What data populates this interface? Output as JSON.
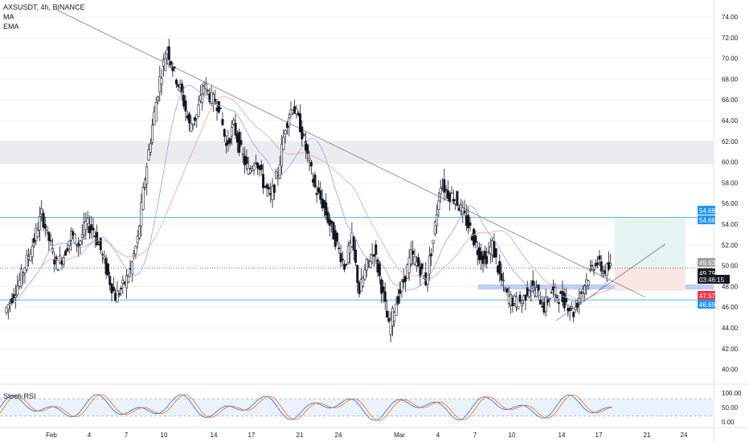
{
  "legend": {
    "symbol_line": "AXSUSDT, 4h, BINANCE",
    "indicator_1": "MA",
    "indicator_2": "EMA"
  },
  "oscillator": {
    "label": "Stoch RSI",
    "ticks": [
      "100.00",
      "50.00",
      "0.00"
    ]
  },
  "price_badges": [
    {
      "text": "54.68",
      "color": "#2196f3"
    },
    {
      "text": "54.66",
      "color": "#2196f3"
    },
    {
      "text": "49.83",
      "color": "#9e9e9e"
    },
    {
      "text": "49.79",
      "color": "#131722"
    },
    {
      "text": "03:46:15",
      "color": "#131722"
    },
    {
      "text": "47.57",
      "color": "#f23645"
    },
    {
      "text": "46.69",
      "color": "#2196f3"
    }
  ],
  "colors": {
    "candle": "#131722",
    "trendline": "#787b86",
    "horizontal_line": "#56b6e6",
    "ma_line": "#8fa3e8",
    "ema_line": "#f2a0a0",
    "stoch_k": "#2962ff",
    "stoch_d": "#ff6d00",
    "gray_zone": "#ebecef",
    "blue_zone": "#bfcdf5",
    "target_zone": "#e6f4f1",
    "stop_zone": "#fbe6e6"
  },
  "chart_data": {
    "type": "candlestick",
    "symbol": "AXSUSDT",
    "interval": "4h",
    "exchange": "BINANCE",
    "ylim": [
      39,
      75
    ],
    "y_ticks": [
      "74.00",
      "72.00",
      "70.00",
      "68.00",
      "66.00",
      "64.00",
      "62.00",
      "60.00",
      "58.00",
      "56.00",
      "54.00",
      "52.00",
      "50.00",
      "48.00",
      "46.00",
      "44.00",
      "42.00",
      "40.00"
    ],
    "x_ticks": [
      "Feb",
      "4",
      "7",
      "10",
      "14",
      "17",
      "21",
      "24",
      "Mar",
      "4",
      "7",
      "10",
      "14",
      "17",
      "21",
      "24"
    ],
    "close_series": [
      45.5,
      47.0,
      48.5,
      50.5,
      52.5,
      55.0,
      52.5,
      50.0,
      51.0,
      53.0,
      52.0,
      54.0,
      53.5,
      51.5,
      49.0,
      47.0,
      48.0,
      49.5,
      52.5,
      58.5,
      63.5,
      68.0,
      71.0,
      68.5,
      66.5,
      63.5,
      64.5,
      67.5,
      66.0,
      65.5,
      61.5,
      63.5,
      61.0,
      59.0,
      60.5,
      58.0,
      56.5,
      59.0,
      63.5,
      65.5,
      63.5,
      60.5,
      57.5,
      56.0,
      54.0,
      52.0,
      50.0,
      52.5,
      47.5,
      50.0,
      51.5,
      48.0,
      44.0,
      46.5,
      48.5,
      51.0,
      50.0,
      48.5,
      52.5,
      58.0,
      57.0,
      56.5,
      55.0,
      53.5,
      51.5,
      50.5,
      52.0,
      49.0,
      47.0,
      46.5,
      46.5,
      48.0,
      47.5,
      46.0,
      47.5,
      47.0,
      46.5,
      45.5,
      47.5,
      49.0,
      50.5,
      49.5,
      49.8
    ],
    "resistance_levels": [
      54.68,
      54.66
    ],
    "support_level": 46.69,
    "last_price": 49.79,
    "reference_price": 49.83,
    "stop_price": 47.57,
    "countdown": "03:46:15",
    "stoch_rsi_levels": [
      80,
      20
    ]
  }
}
